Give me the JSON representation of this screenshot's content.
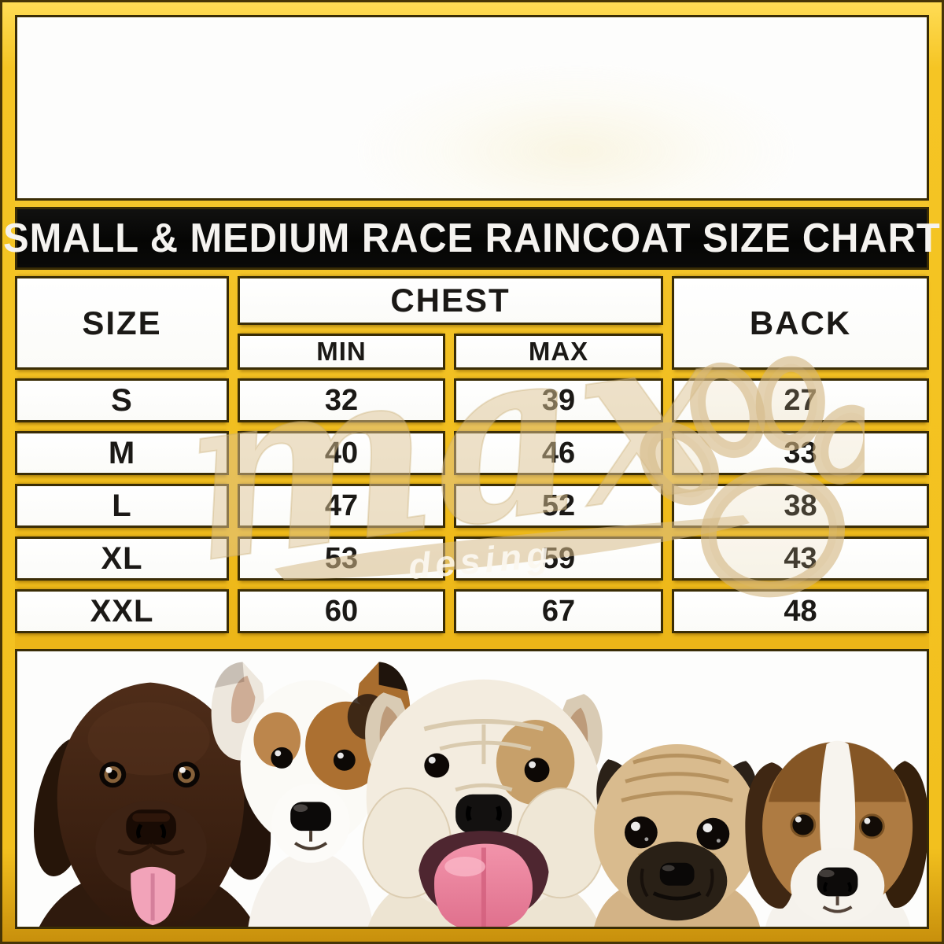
{
  "title_bar": {
    "text": "SMALL & MEDIUM RACE RAINCOAT SIZE CHART"
  },
  "size_table": {
    "header": {
      "size": "SIZE",
      "chest": "CHEST",
      "min": "MIN",
      "max": "MAX",
      "back": "BACK"
    }
  },
  "chart_data": {
    "type": "table",
    "title": "SMALL & MEDIUM RACE RAINCOAT SIZE CHART",
    "columns": [
      "SIZE",
      "CHEST MIN",
      "CHEST MAX",
      "BACK"
    ],
    "rows": [
      {
        "size": "S",
        "chest_min": "32",
        "chest_max": "39",
        "back": "27"
      },
      {
        "size": "M",
        "chest_min": "40",
        "chest_max": "46",
        "back": "33"
      },
      {
        "size": "L",
        "chest_min": "47",
        "chest_max": "52",
        "back": "38"
      },
      {
        "size": "XL",
        "chest_min": "53",
        "chest_max": "59",
        "back": "43"
      },
      {
        "size": "XXL",
        "chest_min": "60",
        "chest_max": "67",
        "back": "48"
      }
    ]
  },
  "watermark": {
    "brand": "max",
    "subtitle": "desing",
    "icon": "paw-print-icon"
  },
  "photo_strip": {
    "description": "five puppy portraits on white background",
    "dogs": [
      "chocolate-labrador-puppy",
      "jack-russell-terrier-puppy",
      "english-bulldog-puppy",
      "pug-puppy",
      "beagle-puppy"
    ]
  },
  "colors": {
    "gold": "#F2C01E",
    "gold_dark": "#C8900C",
    "frame_line": "#3A2D06",
    "title_bg": "#070705",
    "cell_bg": "#FDFDFC",
    "text": "#1B1916",
    "watermark_tan": "#D8BE8D",
    "tongue_pink": "#F2A3B9"
  }
}
